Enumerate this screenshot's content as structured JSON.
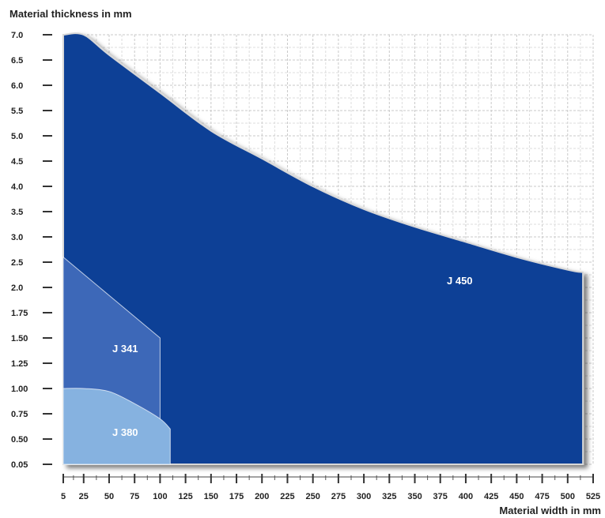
{
  "chart_data": {
    "type": "area",
    "title": "",
    "ylabel": "Material thickness in mm",
    "xlabel": "Material width in mm",
    "x_ticks": [
      "5",
      "25",
      "50",
      "75",
      "100",
      "125",
      "150",
      "175",
      "200",
      "225",
      "250",
      "275",
      "300",
      "325",
      "350",
      "375",
      "400",
      "425",
      "450",
      "475",
      "500",
      "525"
    ],
    "x_tick_values": [
      5,
      25,
      50,
      75,
      100,
      125,
      150,
      175,
      200,
      225,
      250,
      275,
      300,
      325,
      350,
      375,
      400,
      425,
      450,
      475,
      500,
      525
    ],
    "y_ticks": [
      "0.05",
      "0.50",
      "0.75",
      "1.00",
      "1.25",
      "1.50",
      "1.75",
      "2.0",
      "2.5",
      "3.0",
      "3.5",
      "4.0",
      "4.5",
      "5.0",
      "5.5",
      "6.0",
      "6.5",
      "7.0"
    ],
    "xlim": [
      5,
      525
    ],
    "grid": true,
    "series": [
      {
        "name": "J 450",
        "color": "#0c3f96",
        "x": [
          5,
          25,
          50,
          100,
          150,
          200,
          250,
          300,
          350,
          400,
          450,
          500,
          515
        ],
        "y": [
          "7.0",
          "7.0",
          "6.6",
          "5.85",
          "5.1",
          "4.55",
          "4.0",
          "3.55",
          "3.2",
          "2.9",
          "2.6",
          "2.35",
          "2.3"
        ]
      },
      {
        "name": "J 341",
        "color": "#3d68b8",
        "x": [
          5,
          100
        ],
        "y": [
          "2.6",
          "1.50"
        ]
      },
      {
        "name": "J 380",
        "color": "#86b2e0",
        "x": [
          5,
          25,
          50,
          75,
          100,
          110
        ],
        "y": [
          "1.00",
          "1.00",
          "0.97",
          "0.85",
          "0.70",
          "0.60"
        ]
      }
    ]
  }
}
